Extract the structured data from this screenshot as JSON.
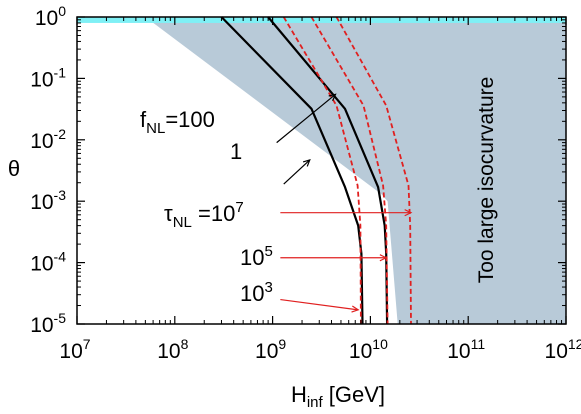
{
  "chart_data": {
    "type": "line",
    "title": "",
    "xlabel": {
      "main": "H",
      "sub": "inf",
      "unit": " [GeV]"
    },
    "ylabel": "θ",
    "xscale": "log",
    "yscale": "log",
    "xlim": [
      10000000.0,
      1000000000000.0
    ],
    "ylim": [
      1e-05,
      1
    ],
    "xticks": [
      {
        "base": "10",
        "exp": "7"
      },
      {
        "base": "10",
        "exp": "8"
      },
      {
        "base": "10",
        "exp": "9"
      },
      {
        "base": "10",
        "exp": "10"
      },
      {
        "base": "10",
        "exp": "11"
      },
      {
        "base": "10",
        "exp": "12"
      }
    ],
    "yticks": [
      {
        "base": "10",
        "exp": "-5"
      },
      {
        "base": "10",
        "exp": "-4"
      },
      {
        "base": "10",
        "exp": "-3"
      },
      {
        "base": "10",
        "exp": "-2"
      },
      {
        "base": "10",
        "exp": "-1"
      },
      {
        "base": "10",
        "exp": "0"
      }
    ],
    "grid": false,
    "regions": [
      {
        "name": "too-large-isocurvature",
        "color": "#b8cad8",
        "polygon": [
          [
            50000000.0,
            1
          ],
          [
            1000000000000.0,
            1
          ],
          [
            1000000000000.0,
            1e-05
          ],
          [
            19000000000.0,
            1e-05
          ],
          [
            15000000000.0,
            0.001
          ],
          [
            13000000000.0,
            0.0013
          ],
          [
            50000000.0,
            1
          ]
        ]
      },
      {
        "name": "top-band",
        "color": "#7ff0f5",
        "band": [
          0.8,
          1
        ]
      }
    ],
    "series": [
      {
        "name": "fNL=100",
        "color": "#000000",
        "dash": "solid",
        "points": [
          [
            300000000.0,
            1
          ],
          [
            2500000000.0,
            0.032
          ],
          [
            5500000000.0,
            0.0017
          ],
          [
            7500000000.0,
            0.0004
          ],
          [
            8100000000.0,
            0.00014
          ],
          [
            8300000000.0,
            1e-05
          ]
        ]
      },
      {
        "name": "fNL=1",
        "color": "#000000",
        "dash": "solid",
        "points": [
          [
            900000000.0,
            1
          ],
          [
            5500000000.0,
            0.032
          ],
          [
            12000000000.0,
            0.0017
          ],
          [
            14000000000.0,
            0.0004
          ],
          [
            14500000000.0,
            0.00014
          ],
          [
            14800000000.0,
            1e-05
          ]
        ]
      },
      {
        "name": "tauNL=1e3",
        "color": "#e02020",
        "dash": "dashed",
        "points": [
          [
            1300000000.0,
            1
          ],
          [
            4500000000.0,
            0.036
          ],
          [
            7400000000.0,
            0.0018
          ],
          [
            7900000000.0,
            0.0004
          ],
          [
            8000000000.0,
            1e-05
          ]
        ]
      },
      {
        "name": "tauNL=1e5",
        "color": "#e02020",
        "dash": "dashed",
        "points": [
          [
            2500000000.0,
            1
          ],
          [
            8500000000.0,
            0.036
          ],
          [
            13500000000.0,
            0.0018
          ],
          [
            14500000000.0,
            0.0004
          ],
          [
            15000000000.0,
            1e-05
          ]
        ]
      },
      {
        "name": "tauNL=1e7",
        "color": "#e02020",
        "dash": "dashed",
        "points": [
          [
            4500000000.0,
            1
          ],
          [
            14500000000.0,
            0.036
          ],
          [
            24500000000.0,
            0.0018
          ],
          [
            25500000000.0,
            0.0004
          ],
          [
            26000000000.0,
            1e-05
          ]
        ]
      }
    ],
    "arrows": [
      {
        "name": "fnl100-arrow",
        "color": "#000000",
        "from": [
          1100000000.0,
          0.009
        ],
        "to": [
          4400000000.0,
          0.055
        ]
      },
      {
        "name": "fnl1-arrow",
        "color": "#000000",
        "from": [
          1300000000.0,
          0.0019
        ],
        "to": [
          2400000000.0,
          0.0047
        ]
      },
      {
        "name": "tau7-arrow",
        "color": "#e02020",
        "from": [
          1200000000.0,
          0.00065
        ],
        "to": [
          26000000000.0,
          0.00065
        ]
      },
      {
        "name": "tau5-arrow",
        "color": "#e02020",
        "from": [
          1200000000.0,
          0.00012
        ],
        "to": [
          14500000000.0,
          0.00012
        ]
      },
      {
        "name": "tau3-arrow",
        "color": "#e02020",
        "from": [
          1200000000.0,
          2.5e-05
        ],
        "to": [
          7500000000.0,
          1.7e-05
        ]
      }
    ],
    "annotations": {
      "fnl100": {
        "main": "f",
        "sub": "NL",
        "rest": "=100"
      },
      "fnl1": "1",
      "tau7": {
        "main": "τ",
        "sub": "NL",
        "rest": " =10",
        "exp": "7"
      },
      "tau5": {
        "base": "10",
        "exp": "5"
      },
      "tau3": {
        "base": "10",
        "exp": "3"
      },
      "region_label": "Too large isocurvature"
    }
  }
}
